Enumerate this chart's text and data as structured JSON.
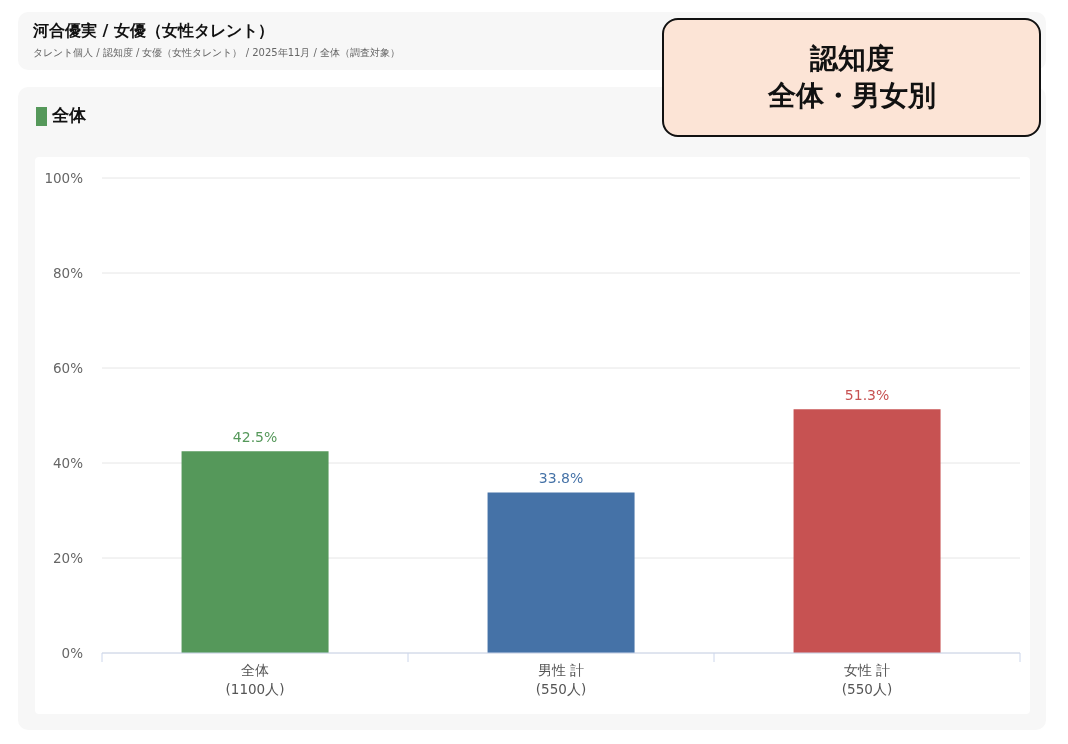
{
  "chart_data": {
    "type": "bar",
    "title": "河合優実 / 女優（女性タレント）",
    "subtitle": "タレント個人 / 認知度 / 女優（女性タレント） / 2025年11月 / 全体（調査対象）",
    "annotations": [
      "全体",
      "認知度",
      "全体・男女別"
    ],
    "categories": [
      "全体\n(1100人)",
      "男性 計\n(550人)",
      "女性 計\n(550人)"
    ],
    "values": [
      42.5,
      33.8,
      51.3
    ],
    "colors": [
      "#55985a",
      "#4572a7",
      "#c75252"
    ],
    "value_labels": [
      "42.5%",
      "33.8%",
      "51.3%"
    ],
    "ylim": [
      0,
      100
    ],
    "yticks": [
      {
        "value": 0,
        "label": "0%"
      },
      {
        "value": 20,
        "label": "20%"
      },
      {
        "value": 40,
        "label": "40%"
      },
      {
        "value": 60,
        "label": "60%"
      },
      {
        "value": 80,
        "label": "80%"
      },
      {
        "value": 100,
        "label": "100%"
      }
    ],
    "grid": "y"
  }
}
